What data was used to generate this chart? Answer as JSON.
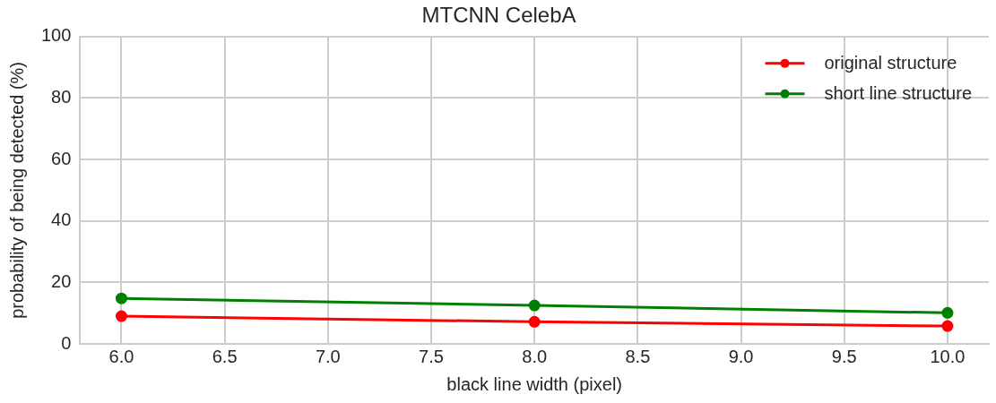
{
  "chart_data": {
    "type": "line",
    "title": "MTCNN CelebA",
    "xlabel": "black line width (pixel)",
    "ylabel": "probability of being detected (%)",
    "x": [
      6,
      8,
      10
    ],
    "series": [
      {
        "name": "original structure",
        "color": "#ff0000",
        "values": [
          9.0,
          7.2,
          5.8
        ]
      },
      {
        "name": "short line structure",
        "color": "#008000",
        "values": [
          14.8,
          12.5,
          10.1
        ]
      }
    ],
    "xlim": [
      5.8,
      10.2
    ],
    "xticks": [
      {
        "value": 6,
        "label": "6.0"
      },
      {
        "value": 6.5,
        "label": "6.5"
      },
      {
        "value": 7,
        "label": "7.0"
      },
      {
        "value": 7.5,
        "label": "7.5"
      },
      {
        "value": 8,
        "label": "8.0"
      },
      {
        "value": 8.5,
        "label": "8.5"
      },
      {
        "value": 9,
        "label": "9.0"
      },
      {
        "value": 9.5,
        "label": "9.5"
      },
      {
        "value": 10,
        "label": "10.0"
      }
    ],
    "ylim": [
      0,
      100
    ],
    "yticks": [
      0,
      20,
      40,
      60,
      80,
      100
    ],
    "grid": true,
    "legend": "top right",
    "marker": "circle",
    "line_style": "solid"
  }
}
